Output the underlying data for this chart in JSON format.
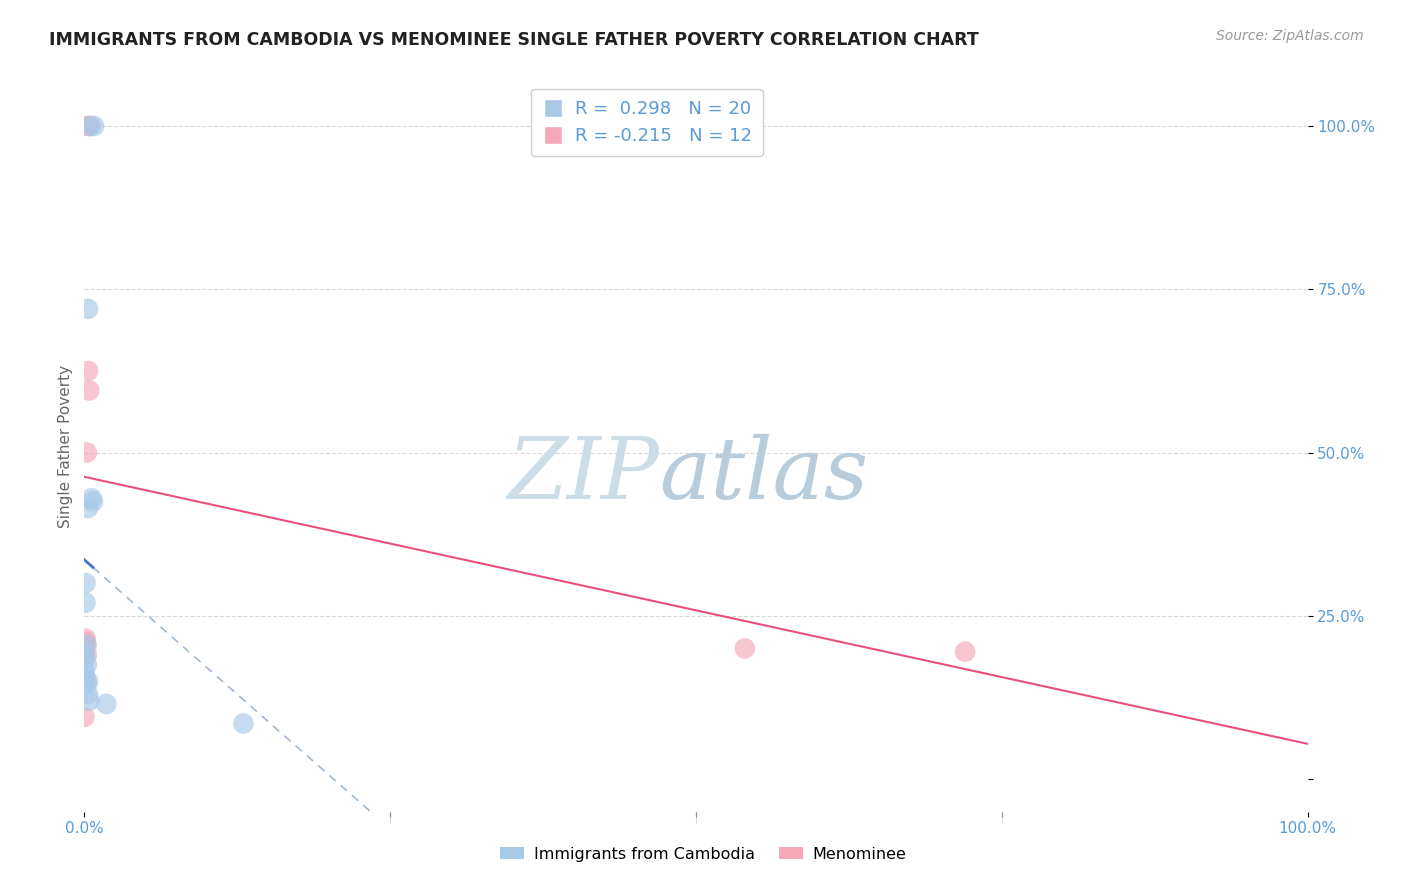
{
  "title": "IMMIGRANTS FROM CAMBODIA VS MENOMINEE SINGLE FATHER POVERTY CORRELATION CHART",
  "source": "Source: ZipAtlas.com",
  "ylabel": "Single Father Poverty",
  "xlim": [
    0.0,
    1.0
  ],
  "ylim": [
    -0.05,
    1.07
  ],
  "legend_blue_r": " 0.298",
  "legend_blue_n": "20",
  "legend_pink_r": "-0.215",
  "legend_pink_n": "12",
  "blue_color": "#a8c8e8",
  "pink_color": "#f4a8b8",
  "trendline_blue": "#4472C4",
  "trendline_pink": "#e8507a",
  "trendline_dashed_color": "#a0b8d0",
  "blue_scatter_x": [
    0.005,
    0.008,
    0.003,
    0.006,
    0.007,
    0.003,
    0.001,
    0.001,
    0.002,
    0.0,
    0.001,
    0.002,
    0.0,
    0.001,
    0.002,
    0.003,
    0.004,
    0.003,
    0.018,
    0.13
  ],
  "blue_scatter_y": [
    1.0,
    1.0,
    0.72,
    0.43,
    0.425,
    0.415,
    0.3,
    0.27,
    0.205,
    0.195,
    0.185,
    0.175,
    0.165,
    0.155,
    0.145,
    0.13,
    0.12,
    0.15,
    0.115,
    0.085
  ],
  "pink_scatter_x": [
    0.003,
    0.004,
    0.003,
    0.004,
    0.002,
    0.001,
    0.001,
    0.0,
    0.001,
    0.002,
    0.54,
    0.72
  ],
  "pink_scatter_y": [
    1.0,
    1.0,
    0.625,
    0.595,
    0.5,
    0.215,
    0.205,
    0.095,
    0.21,
    0.19,
    0.2,
    0.195
  ],
  "watermark_zip": "ZIP",
  "watermark_atlas": "atlas",
  "background_color": "#ffffff",
  "grid_color": "#d8d8d8",
  "tick_color": "#5b9bd5",
  "ylabel_color": "#666666",
  "title_color": "#222222",
  "source_color": "#999999"
}
